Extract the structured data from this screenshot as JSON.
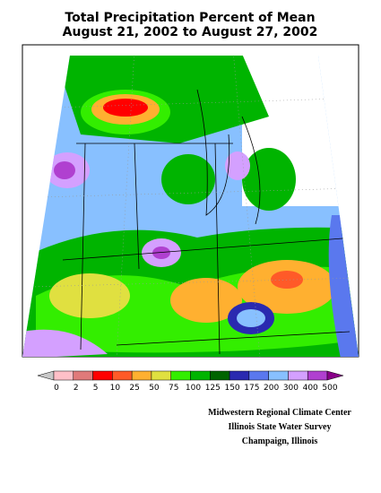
{
  "title": [
    "Total Precipitation Percent of Mean",
    "August 21, 2002 to August 27, 2002"
  ],
  "legend": {
    "labels": [
      0,
      2,
      5,
      10,
      25,
      50,
      75,
      100,
      125,
      150,
      175,
      200,
      300,
      400,
      500
    ],
    "colors": [
      "#ffc0c8",
      "#e07a7a",
      "#ff0000",
      "#ff5a28",
      "#ffb030",
      "#e0e040",
      "#33ee00",
      "#00b400",
      "#006400",
      "#2a2ab0",
      "#5a78ee",
      "#88c0ff",
      "#d4a0ff",
      "#b040d0"
    ],
    "low_color": "#c8c8c8",
    "high_color": "#880088"
  },
  "credits": [
    "Midwestern Regional Climate Center",
    "Illinois State Water Survey",
    "Champaign, Illinois"
  ]
}
